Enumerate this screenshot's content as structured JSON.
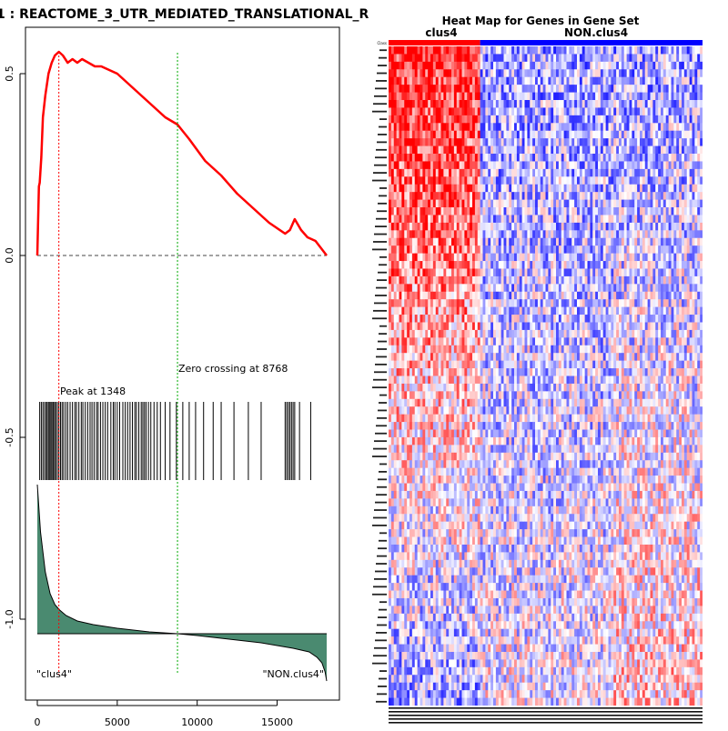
{
  "chart_data": [
    {
      "type": "line",
      "title": "1 : REACTOME_3_UTR_MEDIATED_TRANSLATIONAL_R",
      "xlabel": "",
      "ylabel": "",
      "xlim": [
        0,
        18100
      ],
      "ylim": [
        -1.2,
        0.6
      ],
      "xticks": [
        0,
        5000,
        10000,
        15000
      ],
      "xtick_labels": [
        "0",
        "5000",
        "10000",
        "15000"
      ],
      "yticks": [
        0.5,
        0.0,
        -0.5,
        -1.0
      ],
      "ytick_labels": [
        "0.5",
        "0.0",
        "-0.5",
        "-1.0"
      ],
      "enrichment_series": {
        "name": "running enrichment score",
        "color": "#ff0000",
        "x": [
          0,
          100,
          150,
          250,
          350,
          500,
          700,
          900,
          1100,
          1348,
          1600,
          1900,
          2200,
          2500,
          2800,
          3200,
          3600,
          4000,
          4500,
          5000,
          5500,
          6000,
          6500,
          7000,
          7500,
          8000,
          8768,
          9500,
          10500,
          11500,
          12500,
          13500,
          14500,
          15500,
          15800,
          16100,
          16500,
          16900,
          17400,
          18100
        ],
        "y": [
          0.0,
          0.19,
          0.2,
          0.27,
          0.38,
          0.44,
          0.5,
          0.53,
          0.55,
          0.56,
          0.55,
          0.53,
          0.54,
          0.53,
          0.54,
          0.53,
          0.52,
          0.52,
          0.51,
          0.5,
          0.48,
          0.46,
          0.44,
          0.42,
          0.4,
          0.38,
          0.36,
          0.32,
          0.26,
          0.22,
          0.17,
          0.13,
          0.09,
          0.06,
          0.07,
          0.1,
          0.07,
          0.05,
          0.04,
          0.0
        ]
      },
      "baseline": 0.0,
      "peak": {
        "x": 1348,
        "label": "Peak at 1348",
        "color": "#ff0000"
      },
      "zero_crossing": {
        "x": 8768,
        "label": "Zero crossing at 8768",
        "color": "#00aa00"
      },
      "hit_positions": [
        150,
        250,
        350,
        450,
        550,
        620,
        700,
        780,
        850,
        920,
        1000,
        1080,
        1150,
        1250,
        1348,
        1450,
        1550,
        1650,
        1780,
        1900,
        2050,
        2200,
        2350,
        2450,
        2600,
        2750,
        2850,
        3000,
        3150,
        3300,
        3420,
        3550,
        3700,
        3800,
        3950,
        4100,
        4250,
        4400,
        4600,
        4750,
        4850,
        5000,
        5150,
        5350,
        5500,
        5650,
        5800,
        5950,
        6100,
        6200,
        6350,
        6500,
        6600,
        6700,
        6800,
        6950,
        7100,
        7300,
        7500,
        7700,
        8000,
        8300,
        8700,
        9100,
        9500,
        9900,
        10400,
        11000,
        11500,
        12300,
        13200,
        14000,
        15500,
        15600,
        15700,
        15800,
        15900,
        16000,
        16100,
        16400,
        17100
      ],
      "ranked_metric": {
        "color": "#4a8a70",
        "x": [
          0,
          200,
          500,
          800,
          1100,
          1400,
          1800,
          2500,
          3500,
          5000,
          7000,
          8768,
          10000,
          12000,
          14000,
          16000,
          17000,
          17500,
          17800,
          18000,
          18100
        ],
        "y": [
          -0.63,
          -0.76,
          -0.87,
          -0.93,
          -0.96,
          -0.975,
          -0.99,
          -1.005,
          -1.015,
          -1.025,
          -1.035,
          -1.04,
          -1.045,
          -1.055,
          -1.065,
          -1.08,
          -1.09,
          -1.105,
          -1.12,
          -1.145,
          -1.17
        ],
        "zero_level": -1.04,
        "left_label": "\"clus4\"",
        "right_label": "\"NON.clus4\""
      }
    },
    {
      "type": "heatmap",
      "title": "Heat Map for Genes in Gene Set",
      "groups": [
        {
          "name": "clus4",
          "color": "#ff0000"
        },
        {
          "name": "NON.clus4",
          "color": "#0000ff"
        }
      ],
      "first_row_label": "Class",
      "n_rows": 86,
      "n_cols": 120,
      "n_group1_cols": 35,
      "low_color": "#0000ff",
      "mid_color": "#ffffff",
      "high_color": "#ff0000"
    }
  ]
}
